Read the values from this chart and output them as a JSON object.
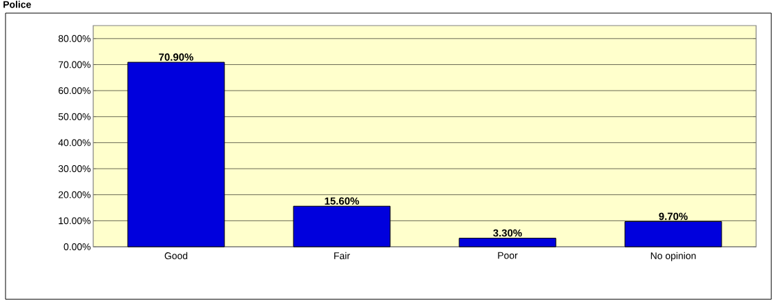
{
  "chart_data": {
    "type": "bar",
    "title": "Police",
    "categories": [
      "Good",
      "Fair",
      "Poor",
      "No opinion"
    ],
    "values": [
      70.9,
      15.6,
      3.3,
      9.7
    ],
    "color": "#0000dd",
    "value_labels": [
      "70.90%",
      "15.60%",
      "3.30%",
      "9.70%"
    ],
    "ylim": [
      0,
      85
    ],
    "yticks": [
      {
        "value": 0,
        "label": "0.00%"
      },
      {
        "value": 10,
        "label": "10.00%"
      },
      {
        "value": 20,
        "label": "20.00%"
      },
      {
        "value": 30,
        "label": "30.00%"
      },
      {
        "value": 40,
        "label": "40.00%"
      },
      {
        "value": 50,
        "label": "50.00%"
      },
      {
        "value": 60,
        "label": "60.00%"
      },
      {
        "value": 70,
        "label": "70.00%"
      },
      {
        "value": 80,
        "label": "80.00%"
      }
    ],
    "grid": "y"
  }
}
